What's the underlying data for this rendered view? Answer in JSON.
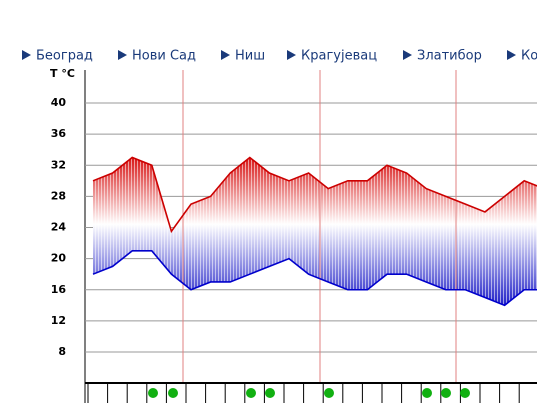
{
  "nav": [
    "Београд",
    "Нови Сад",
    "Ниш",
    "Крагујевац",
    "Златибор",
    "Ко"
  ],
  "chart_data": {
    "type": "line",
    "y_label": "T °C",
    "categories": [
      null,
      null,
      null,
      null,
      null,
      null,
      null,
      null,
      null,
      null,
      null,
      null,
      null,
      null,
      null,
      null,
      null,
      null,
      null,
      null,
      null,
      null,
      null,
      null
    ],
    "series": [
      {
        "name": null,
        "color": "#cc0000",
        "values": [
          30,
          31,
          33,
          32,
          23.5,
          27,
          28,
          31,
          33,
          31,
          30,
          31,
          29,
          30,
          30,
          32,
          31,
          29,
          28,
          27,
          26,
          28,
          30,
          29
        ]
      },
      {
        "name": null,
        "color": "#0000cc",
        "values": [
          18,
          19,
          21,
          21,
          18,
          16,
          17,
          17,
          18,
          19,
          20,
          18,
          17,
          16,
          16,
          18,
          18,
          17,
          16,
          16,
          15,
          14,
          16,
          16
        ]
      }
    ],
    "ylim": [
      3,
      42
    ],
    "yticks": [
      8,
      12,
      16,
      20,
      24,
      28,
      32,
      36,
      40
    ],
    "grid": true
  }
}
